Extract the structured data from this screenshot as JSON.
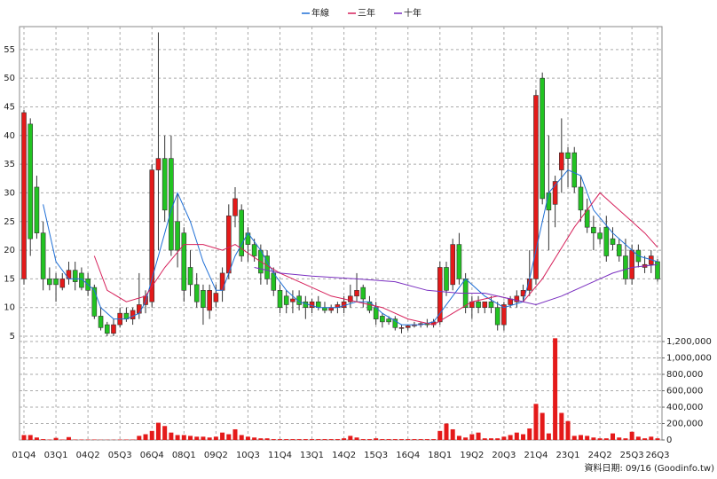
{
  "chart_data": {
    "type": "candlestick",
    "footnote": "資料日期: 09/16  (Goodinfo.tw)",
    "categories": [
      "01Q4",
      null,
      null,
      null,
      null,
      "03Q1",
      null,
      null,
      null,
      null,
      "04Q2",
      null,
      null,
      null,
      null,
      "05Q3",
      null,
      null,
      null,
      null,
      "06Q4",
      null,
      null,
      null,
      null,
      "08Q1",
      null,
      null,
      null,
      null,
      "09Q2",
      null,
      null,
      null,
      null,
      "10Q3",
      null,
      null,
      null,
      null,
      "11Q4",
      null,
      null,
      null,
      null,
      "13Q1",
      null,
      null,
      null,
      null,
      "14Q2",
      null,
      null,
      null,
      null,
      "15Q3",
      null,
      null,
      null,
      null,
      "16Q4",
      null,
      null,
      null,
      null,
      "18Q1",
      null,
      null,
      null,
      null,
      "19Q2",
      null,
      null,
      null,
      null,
      "20Q3",
      null,
      null,
      null,
      null,
      "21Q4",
      null,
      null,
      null,
      null,
      "23Q1",
      null,
      null,
      null,
      null,
      "24Q2",
      null,
      null,
      null,
      null,
      "25Q3",
      null,
      null,
      null,
      "26Q3"
    ],
    "open": [
      15,
      42,
      31,
      23,
      15,
      15,
      13.5,
      15,
      16.5,
      16,
      15,
      13.5,
      8.5,
      7,
      5.5,
      7,
      9,
      8,
      9,
      10.5,
      11,
      34,
      36,
      36,
      25,
      23,
      17,
      14,
      13,
      9.5,
      11,
      13,
      16,
      26,
      27,
      23,
      21,
      20,
      19,
      16,
      13,
      12,
      11,
      12,
      11,
      10,
      11,
      10,
      9.5,
      10,
      10,
      11,
      12,
      13.5,
      11,
      10,
      8.5,
      8,
      8,
      6.5,
      6.5,
      6.8,
      7,
      7.2,
      7,
      7.5,
      17,
      14,
      21,
      15,
      10,
      11,
      10,
      11,
      10,
      7,
      10.5,
      11,
      12,
      13,
      15,
      50,
      30,
      28,
      34,
      37,
      37,
      31,
      27,
      24,
      23,
      24,
      22,
      21,
      19,
      15,
      20,
      17,
      17.5,
      18
    ],
    "high": [
      44.5,
      43,
      33,
      25,
      17,
      16,
      16,
      18,
      18,
      17,
      16,
      14,
      10,
      7.5,
      8,
      10,
      10,
      10,
      16,
      13,
      35,
      58,
      40,
      40,
      30,
      24,
      20,
      16,
      14,
      14,
      14,
      17,
      28,
      31,
      28,
      24,
      22,
      21,
      20,
      17,
      14,
      13,
      13,
      13,
      12,
      11.5,
      12,
      11,
      10.5,
      11,
      12,
      14,
      16,
      14,
      12,
      11,
      9,
      8.5,
      8.5,
      7,
      7,
      7.5,
      7.5,
      8,
      8,
      18,
      18,
      22,
      23,
      16,
      12,
      12,
      11,
      12,
      11,
      11,
      12,
      13,
      14,
      20,
      48,
      51,
      40,
      33,
      43,
      38,
      38,
      33,
      29,
      26,
      24,
      26,
      24,
      22,
      22,
      21,
      21,
      19,
      20,
      18.5
    ],
    "low": [
      14,
      19,
      22,
      13,
      13,
      11,
      13,
      14,
      13,
      13,
      12,
      8,
      6,
      5,
      5,
      6.5,
      7.5,
      7,
      8,
      9,
      10,
      20,
      25,
      19,
      17,
      11,
      12,
      10,
      7,
      8,
      10,
      11,
      15,
      24,
      18,
      18,
      18,
      14,
      14,
      12,
      9,
      9,
      9,
      9.5,
      8,
      9,
      9.5,
      9,
      9,
      9,
      9,
      10,
      11,
      10,
      9,
      7,
      6.5,
      7,
      6,
      5.5,
      6,
      6.5,
      6.5,
      6.5,
      6.5,
      7,
      12,
      13,
      14,
      9,
      8,
      9,
      9,
      9,
      6,
      6,
      10,
      10,
      11,
      12,
      14,
      28,
      20,
      24,
      30,
      31,
      30,
      25,
      23,
      20,
      21,
      18,
      20,
      18,
      14,
      14,
      17,
      16,
      16,
      14.5
    ],
    "close": [
      44,
      22,
      23,
      15,
      14,
      14,
      15,
      16.5,
      14.5,
      13.5,
      13,
      8.5,
      6.5,
      5.5,
      7,
      9,
      8,
      9.5,
      10.5,
      12,
      34,
      36,
      27,
      20,
      20,
      13,
      14,
      11,
      10,
      13,
      12.5,
      16,
      26,
      29,
      19,
      21,
      19,
      16,
      15,
      13,
      10,
      10.5,
      11.5,
      10.5,
      10,
      11,
      10,
      9.5,
      10,
      10.5,
      11,
      12,
      13,
      11.5,
      9.5,
      8,
      7.5,
      7.5,
      6.5,
      6.5,
      6.8,
      7,
      7.2,
      7,
      7.5,
      17,
      13,
      21,
      15,
      10,
      11,
      10,
      11,
      10,
      7,
      10.5,
      11.5,
      12,
      13,
      15,
      47,
      29,
      27,
      32,
      37,
      36,
      31,
      27,
      24,
      23,
      22,
      19,
      21,
      19,
      15,
      20,
      18,
      17.5,
      19,
      15
    ],
    "up_color": "#e41a1a",
    "down_color": "#22c322",
    "volume": [
      60000,
      60000,
      30000,
      10000,
      5000,
      25000,
      5000,
      35000,
      5000,
      5000,
      5000,
      5000,
      3000,
      3000,
      3000,
      5000,
      5000,
      5000,
      50000,
      70000,
      110000,
      210000,
      170000,
      90000,
      60000,
      60000,
      50000,
      40000,
      40000,
      30000,
      40000,
      90000,
      70000,
      130000,
      60000,
      40000,
      30000,
      20000,
      20000,
      10000,
      10000,
      10000,
      10000,
      10000,
      10000,
      10000,
      10000,
      10000,
      10000,
      10000,
      20000,
      50000,
      30000,
      10000,
      10000,
      20000,
      10000,
      10000,
      10000,
      10000,
      10000,
      10000,
      10000,
      10000,
      10000,
      110000,
      200000,
      130000,
      50000,
      30000,
      70000,
      90000,
      20000,
      20000,
      20000,
      40000,
      60000,
      90000,
      70000,
      140000,
      440000,
      330000,
      80000,
      1240000,
      330000,
      230000,
      50000,
      60000,
      50000,
      30000,
      20000,
      20000,
      80000,
      30000,
      20000,
      100000,
      40000,
      20000,
      40000,
      20000
    ],
    "volume_color": "#e41a1a",
    "series": [
      {
        "name": "年線",
        "color": "#1f6fd6",
        "x": [
          3,
          5,
          7,
          9,
          11,
          12,
          14,
          16,
          18,
          19,
          21,
          23,
          24,
          26,
          28,
          30,
          31,
          33,
          35,
          37,
          39,
          41,
          43,
          46,
          49,
          52,
          54,
          56,
          59,
          62,
          64,
          67,
          69,
          72,
          75,
          78,
          79,
          82,
          85,
          87,
          89,
          92,
          94,
          96,
          99
        ],
        "values": [
          28,
          18,
          15,
          15,
          13,
          10,
          8,
          8,
          9,
          11,
          19,
          27,
          30,
          25,
          18,
          13,
          13,
          19,
          23,
          20,
          16,
          13,
          11,
          10,
          10,
          11,
          11,
          9,
          7,
          7,
          7.5,
          12,
          15,
          12,
          10,
          11,
          15,
          30,
          34,
          33,
          27,
          23,
          21,
          19,
          18
        ]
      },
      {
        "name": "三年",
        "color": "#d6205a",
        "x": [
          11,
          13,
          16,
          19,
          22,
          25,
          28,
          31,
          33,
          37,
          40,
          44,
          48,
          52,
          56,
          60,
          64,
          67,
          70,
          74,
          78,
          81,
          86,
          90,
          92,
          95,
          97,
          99
        ],
        "values": [
          19,
          13,
          11,
          12,
          17,
          21,
          21,
          20,
          21,
          18,
          16,
          14,
          12,
          11,
          10,
          8,
          7,
          9,
          11,
          12,
          11,
          15,
          24,
          30,
          28,
          25,
          23,
          20.5
        ]
      },
      {
        "name": "十年",
        "color": "#7a2fc0",
        "x": [
          36,
          40,
          45,
          52,
          58,
          63,
          68,
          72,
          76,
          80,
          84,
          88,
          92,
          95,
          99
        ],
        "values": [
          17,
          16,
          15.5,
          15,
          14.5,
          13,
          12.5,
          12.5,
          11.5,
          10.5,
          12,
          14,
          16,
          17,
          17.5
        ]
      }
    ],
    "ylim": [
      -13.1,
      59
    ],
    "yticks": [
      5,
      10,
      15,
      20,
      25,
      30,
      35,
      40,
      45,
      50,
      55
    ],
    "y2lim": [
      0,
      5040000
    ],
    "y2ticks": [
      0,
      {
        "value": 200000,
        "label": "200,000"
      },
      {
        "value": 400000,
        "label": "400,000"
      },
      {
        "value": 600000,
        "label": "600,000"
      },
      {
        "value": 800000,
        "label": "800,000"
      },
      {
        "value": 1000000,
        "label": "1,000,000"
      },
      {
        "value": 1200000,
        "label": "1,200,000"
      }
    ],
    "grid": true
  }
}
